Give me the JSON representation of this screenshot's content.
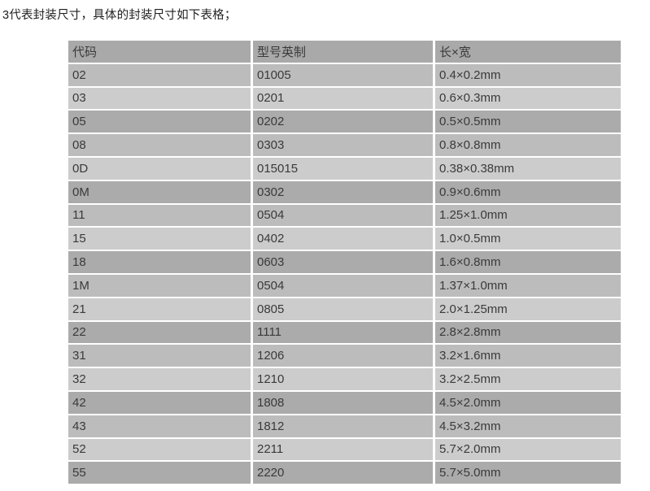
{
  "intro": {
    "text": "3代表封装尺寸，具体的封装尺寸如下表格；"
  },
  "table": {
    "headers": [
      {
        "key": "code",
        "label": "代码"
      },
      {
        "key": "model-imperial",
        "label": "型号英制"
      },
      {
        "key": "size-lw",
        "label": "长×宽"
      }
    ],
    "rows": [
      [
        "02",
        "01005",
        "0.4×0.2mm"
      ],
      [
        "03",
        "0201",
        "0.6×0.3mm"
      ],
      [
        "05",
        "0202",
        "0.5×0.5mm"
      ],
      [
        "08",
        "0303",
        "0.8×0.8mm"
      ],
      [
        "0D",
        "015015",
        "0.38×0.38mm"
      ],
      [
        "0M",
        "0302",
        "0.9×0.6mm"
      ],
      [
        "11",
        "0504",
        "1.25×1.0mm"
      ],
      [
        "15",
        "0402",
        "1.0×0.5mm"
      ],
      [
        "18",
        "0603",
        "1.6×0.8mm"
      ],
      [
        "1M",
        "0504",
        "1.37×1.0mm"
      ],
      [
        "21",
        "0805",
        "2.0×1.25mm"
      ],
      [
        "22",
        "1111",
        "2.8×2.8mm"
      ],
      [
        "31",
        "1206",
        "3.2×1.6mm"
      ],
      [
        "32",
        "1210",
        "3.2×2.5mm"
      ],
      [
        "42",
        "1808",
        "4.5×2.0mm"
      ],
      [
        "43",
        "1812",
        "4.5×3.2mm"
      ],
      [
        "52",
        "2211",
        "5.7×2.0mm"
      ],
      [
        "55",
        "2220",
        "5.7×5.0mm"
      ]
    ],
    "style": {
      "header_bg": "#a9a9a9",
      "row_shade_cycle": [
        "#bcbcbc",
        "#cccccc",
        "#ababab"
      ],
      "text_color": "#3a3a3a"
    }
  }
}
